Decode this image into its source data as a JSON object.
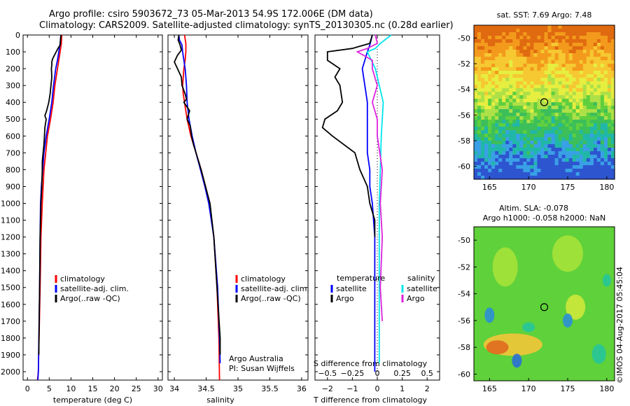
{
  "header": {
    "line1": "Argo profile: csiro 5903672_73 05-Mar-2013 54.9S 172.006E (DM data)",
    "line2": "Climatology: CARS2009. Satellite-adjusted climatology: synTS_20130305.nc (0.28d earlier)"
  },
  "colors": {
    "climatology": "#ff0000",
    "satellite": "#0000ff",
    "argo": "#000000",
    "salinity_satellite": "#00e5ee",
    "salinity_argo": "#dd22dd"
  },
  "icons": {
    "profile_marker": "circle-icon"
  },
  "chart_data": [
    {
      "type": "line",
      "id": "temperature",
      "xlabel": "temperature (deg C)",
      "ylabel": "",
      "xlim": [
        -1,
        31
      ],
      "ylim": [
        2050,
        0
      ],
      "x_ticks": [
        0,
        5,
        10,
        15,
        20,
        25,
        30
      ],
      "y_ticks": [
        0,
        100,
        200,
        300,
        400,
        500,
        600,
        700,
        800,
        900,
        1000,
        1100,
        1200,
        1300,
        1400,
        1500,
        1600,
        1700,
        1800,
        1900,
        2000
      ],
      "legend": [
        "climatology",
        "satellite-adj. clim.",
        "Argo(..raw -QC)"
      ],
      "series": [
        {
          "name": "climatology",
          "color": "#ff0000",
          "depth": [
            0,
            50,
            100,
            150,
            200,
            300,
            400,
            500,
            600,
            700,
            800,
            900,
            1000,
            1200,
            1500,
            2000,
            2050
          ],
          "values": [
            7.9,
            7.8,
            7.5,
            7.2,
            6.9,
            6.3,
            5.9,
            5.3,
            4.6,
            4.2,
            3.8,
            3.6,
            3.4,
            3.1,
            2.9,
            2.5,
            2.3
          ]
        },
        {
          "name": "satellite-adj. clim.",
          "color": "#0000ff",
          "depth": [
            0,
            50,
            100,
            150,
            200,
            300,
            400,
            500,
            600,
            700,
            800,
            900,
            1000,
            1200,
            1500,
            2000,
            2050
          ],
          "values": [
            7.7,
            7.5,
            7.2,
            6.9,
            6.5,
            6.0,
            5.6,
            5.0,
            4.3,
            3.8,
            3.5,
            3.2,
            3.0,
            2.9,
            2.8,
            2.5,
            2.4
          ]
        },
        {
          "name": "Argo(..raw -QC)",
          "color": "#000000",
          "depth": [
            0,
            20,
            60,
            80,
            100,
            140,
            160,
            180,
            200,
            250,
            300,
            350,
            400,
            450,
            480,
            500,
            550,
            600,
            650,
            700,
            750,
            800,
            900,
            1000,
            1100,
            1200,
            1500,
            1900
          ],
          "values": [
            7.7,
            7.6,
            7.5,
            7.0,
            6.6,
            5.8,
            5.6,
            5.6,
            5.5,
            5.6,
            5.4,
            5.2,
            4.9,
            4.4,
            4.0,
            4.3,
            4.0,
            3.9,
            3.8,
            3.6,
            3.4,
            3.4,
            3.3,
            3.1,
            3.0,
            2.9,
            2.8,
            2.6
          ]
        }
      ]
    },
    {
      "type": "line",
      "id": "salinity",
      "xlabel": "salinity",
      "xlim": [
        33.9,
        36.1
      ],
      "ylim": [
        2050,
        0
      ],
      "x_ticks": [
        34,
        34.5,
        35,
        35.5,
        36
      ],
      "legend": [
        "climatology",
        "satellite-adj. clim.",
        "Argo(..raw -QC)"
      ],
      "annotation": [
        "Argo Australia",
        "PI: Susan Wijffels"
      ],
      "series": [
        {
          "name": "climatology",
          "color": "#ff0000",
          "depth": [
            0,
            50,
            100,
            150,
            200,
            250,
            300,
            350,
            400,
            500,
            600,
            700,
            800,
            900,
            1000,
            1200,
            1500,
            1800,
            2050
          ],
          "values": [
            34.16,
            34.18,
            34.18,
            34.17,
            34.15,
            34.14,
            34.13,
            34.14,
            34.16,
            34.2,
            34.26,
            34.34,
            34.42,
            34.49,
            34.55,
            34.62,
            34.67,
            34.7,
            34.71
          ]
        },
        {
          "name": "satellite-adj. clim.",
          "color": "#0000ff",
          "depth": [
            0,
            30,
            60,
            100,
            150,
            200,
            300,
            400,
            500,
            600,
            700,
            800,
            900,
            1000,
            1200,
            1500,
            1800,
            1950
          ],
          "values": [
            34.07,
            34.08,
            34.12,
            34.13,
            34.15,
            34.17,
            34.19,
            34.2,
            34.23,
            34.28,
            34.34,
            34.41,
            34.48,
            34.54,
            34.62,
            34.68,
            34.71,
            34.72
          ]
        },
        {
          "name": "Argo(..raw -QC)",
          "color": "#000000",
          "depth": [
            0,
            30,
            60,
            90,
            120,
            160,
            200,
            250,
            300,
            350,
            380,
            400,
            450,
            500,
            540,
            600,
            650,
            700,
            800,
            900,
            1000,
            1200,
            1500,
            1800,
            1900
          ],
          "values": [
            34.07,
            34.06,
            34.09,
            34.11,
            34.05,
            34.0,
            34.05,
            34.11,
            34.12,
            34.17,
            34.19,
            34.15,
            34.24,
            34.2,
            34.25,
            34.27,
            34.3,
            34.34,
            34.42,
            34.49,
            34.56,
            34.62,
            34.67,
            34.72,
            34.72
          ]
        }
      ]
    },
    {
      "type": "line",
      "id": "differences",
      "xlabel": "T difference from climatology",
      "xlabel_top": "S difference from climatology",
      "t_xlim": [
        -2.5,
        2.5
      ],
      "t_ticks": [
        -2,
        -1,
        0,
        1,
        2
      ],
      "s_ticks": [
        -0.5,
        -0.25,
        0,
        0.25,
        0.5
      ],
      "s_ticks_label": [
        "−0.5",
        "−0.25",
        "0",
        "0.25",
        "0.5"
      ],
      "ylim": [
        2050,
        0
      ],
      "legend": {
        "temperature_title": "temperature",
        "salinity_title": "salinity",
        "satellite": "satellite",
        "argo": "Argo"
      },
      "series": [
        {
          "name": "temperature satellite",
          "color": "#0000ff",
          "depth": [
            0,
            60,
            100,
            150,
            200,
            300,
            400,
            500,
            600,
            700,
            800,
            900,
            1000,
            1200,
            1500,
            2000
          ],
          "values": [
            -0.2,
            -0.3,
            -0.4,
            -0.5,
            -0.6,
            -0.5,
            -0.4,
            -0.4,
            -0.4,
            -0.4,
            -0.3,
            -0.3,
            -0.2,
            -0.1,
            -0.1,
            -0.1
          ]
        },
        {
          "name": "temperature Argo",
          "color": "#000000",
          "depth": [
            0,
            50,
            80,
            100,
            150,
            200,
            250,
            300,
            400,
            450,
            500,
            550,
            600,
            700,
            800,
            900,
            1000,
            1100,
            1200
          ],
          "values": [
            -0.2,
            -0.3,
            -1.0,
            -2.0,
            -2.0,
            -1.5,
            -1.7,
            -1.5,
            -1.4,
            -1.6,
            -2.1,
            -2.2,
            -1.8,
            -0.9,
            -0.7,
            -0.4,
            -0.3,
            -0.1,
            -0.1
          ]
        },
        {
          "name": "salinity satellite",
          "color": "#00e5ee",
          "depth": [
            0,
            50,
            80,
            100,
            200,
            400,
            600,
            800,
            1000,
            1500,
            1950
          ],
          "values": [
            0.14,
            0.03,
            -0.02,
            -0.1,
            -0.02,
            0.06,
            0.04,
            0.03,
            0.02,
            0.02,
            0.02
          ]
        },
        {
          "name": "salinity Argo",
          "color": "#dd22dd",
          "depth": [
            0,
            50,
            80,
            100,
            150,
            200,
            300,
            400,
            500,
            600,
            800,
            1000,
            1200,
            1500,
            1700
          ],
          "values": [
            -0.02,
            0.0,
            -0.1,
            -0.2,
            -0.05,
            -0.05,
            0.0,
            -0.05,
            0.0,
            0.0,
            0.05,
            0.03,
            0.05,
            0.03,
            0.05
          ]
        }
      ]
    },
    {
      "type": "heatmap",
      "id": "sst_map",
      "title": "sat. SST: 7.69 Argo: 7.48",
      "xlim": [
        163,
        181
      ],
      "ylim": [
        -61,
        -49
      ],
      "x_ticks": [
        165,
        170,
        175,
        180
      ],
      "y_ticks": [
        -50,
        -52,
        -54,
        -56,
        -58,
        -60
      ],
      "marker": {
        "lon": 172.0,
        "lat": -55.0
      }
    },
    {
      "type": "heatmap",
      "id": "sla_map",
      "title_line1": "Altim. SLA: -0.078",
      "title_line2": "Argo h1000: -0.058 h2000: NaN",
      "xlim": [
        163,
        181
      ],
      "ylim": [
        -60.5,
        -49
      ],
      "x_ticks": [
        165,
        170,
        175,
        180
      ],
      "y_ticks": [
        -50,
        -52,
        -54,
        -56,
        -58,
        -60
      ],
      "marker": {
        "lon": 172.0,
        "lat": -55.0
      }
    }
  ],
  "footer": {
    "credit": "©IMOS 04-Aug-2017 05:45:04"
  }
}
